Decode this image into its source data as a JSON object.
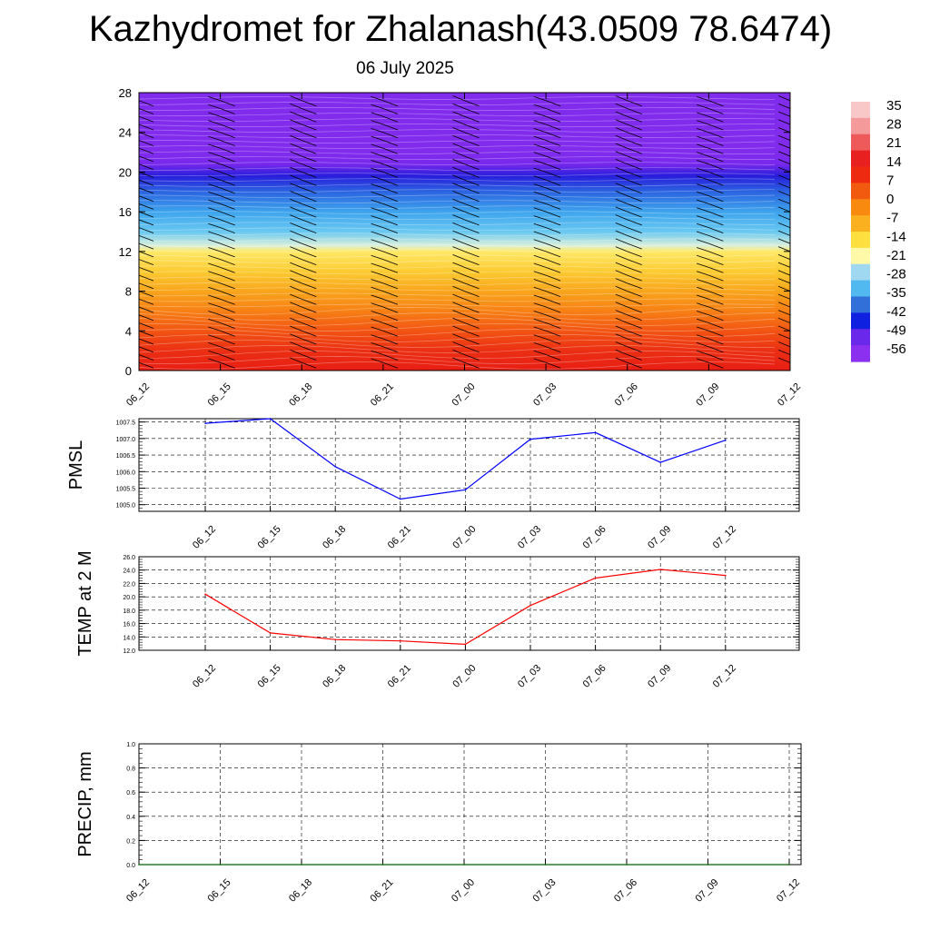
{
  "title": "Kazhydromet for Zhalanash(43.0509 78.6474)",
  "subtitle": "06 July 2025",
  "time_labels": [
    "06_12",
    "06_15",
    "06_18",
    "06_21",
    "07_00",
    "07_03",
    "07_06",
    "07_09",
    "07_12"
  ],
  "colors": {
    "pmsl_line": "#0000ff",
    "temp_line": "#ff0000",
    "precip_line": "#006400",
    "gridline": "#000000"
  },
  "chart_data": [
    {
      "type": "heatmap",
      "name": "vertical-profile",
      "x": [
        "06_12",
        "06_15",
        "06_18",
        "06_21",
        "07_00",
        "07_03",
        "07_06",
        "07_09",
        "07_12"
      ],
      "ylim": [
        0,
        28
      ],
      "yticks": [
        0,
        4,
        8,
        12,
        16,
        20,
        24,
        28
      ],
      "colorbar_labels": [
        "35",
        "28",
        "21",
        "14",
        "7",
        "0",
        "-7",
        "-14",
        "-21",
        "-28",
        "-35",
        "-42",
        "-49",
        "-56"
      ],
      "colorbar_colors": [
        "#f8c8c8",
        "#f49a9a",
        "#ee5a5a",
        "#e82020",
        "#ee2a10",
        "#f25a10",
        "#f88a10",
        "#fbb020",
        "#fde040",
        "#fff9a8",
        "#9fd8f0",
        "#52b8f0",
        "#3070d8",
        "#1020e0",
        "#6a28ea",
        "#8a30ee"
      ],
      "profile": [
        {
          "alt": 0,
          "value": 22
        },
        {
          "alt": 2,
          "value": 19
        },
        {
          "alt": 4,
          "value": 13
        },
        {
          "alt": 6,
          "value": 7
        },
        {
          "alt": 8,
          "value": 2
        },
        {
          "alt": 10,
          "value": -4
        },
        {
          "alt": 12,
          "value": -10
        },
        {
          "alt": 12.6,
          "value": -16
        },
        {
          "alt": 14,
          "value": -24
        },
        {
          "alt": 16,
          "value": -32
        },
        {
          "alt": 18,
          "value": -42
        },
        {
          "alt": 19.6,
          "value": -52
        },
        {
          "alt": 20.8,
          "value": -56
        },
        {
          "alt": 22,
          "value": -58
        },
        {
          "alt": 28,
          "value": -58
        }
      ]
    },
    {
      "type": "line",
      "name": "pmsl",
      "ylabel": "PMSL",
      "x": [
        "06_12",
        "06_15",
        "06_18",
        "06_21",
        "07_00",
        "07_03",
        "07_06",
        "07_09",
        "07_12"
      ],
      "series": [
        {
          "values": [
            1007.46,
            1007.6,
            1006.15,
            1005.17,
            1005.45,
            1006.98,
            1007.18,
            1006.28,
            1006.95
          ]
        }
      ],
      "ylim": [
        1004.8,
        1007.6
      ],
      "yticks": [
        "1005.0",
        "1005.5",
        "1006.0",
        "1006.5",
        "1007.0",
        "1007.5"
      ],
      "ytick_values": [
        1005.0,
        1005.5,
        1006.0,
        1006.5,
        1007.0,
        1007.5
      ],
      "grid": true
    },
    {
      "type": "line",
      "name": "temp",
      "ylabel": "TEMP at 2 M",
      "x": [
        "06_12",
        "06_15",
        "06_18",
        "06_21",
        "07_00",
        "07_03",
        "07_06",
        "07_09",
        "07_12"
      ],
      "series": [
        {
          "values": [
            20.4,
            14.6,
            13.6,
            13.4,
            12.9,
            18.7,
            22.8,
            24.1,
            23.2
          ]
        }
      ],
      "ylim": [
        12.0,
        26.0
      ],
      "yticks": [
        "12.0",
        "14.0",
        "16.0",
        "18.0",
        "20.0",
        "22.0",
        "24.0",
        "26.0"
      ],
      "ytick_values": [
        12,
        14,
        16,
        18,
        20,
        22,
        24,
        26
      ],
      "grid": true
    },
    {
      "type": "line",
      "name": "precip",
      "ylabel": "PRECIP, mm",
      "x": [
        "06_12",
        "06_15",
        "06_18",
        "06_21",
        "07_00",
        "07_03",
        "07_06",
        "07_09",
        "07_12"
      ],
      "series": [
        {
          "values": [
            0.0,
            0.0,
            0.0,
            0.0,
            0.0,
            0.0,
            0.0,
            0.0,
            0.0
          ]
        }
      ],
      "ylim": [
        0.0,
        1.0
      ],
      "yticks": [
        "0.0",
        "0.2",
        "0.4",
        "0.6",
        "0.8",
        "1.0"
      ],
      "ytick_values": [
        0.0,
        0.2,
        0.4,
        0.6,
        0.8,
        1.0
      ],
      "grid": true
    }
  ]
}
